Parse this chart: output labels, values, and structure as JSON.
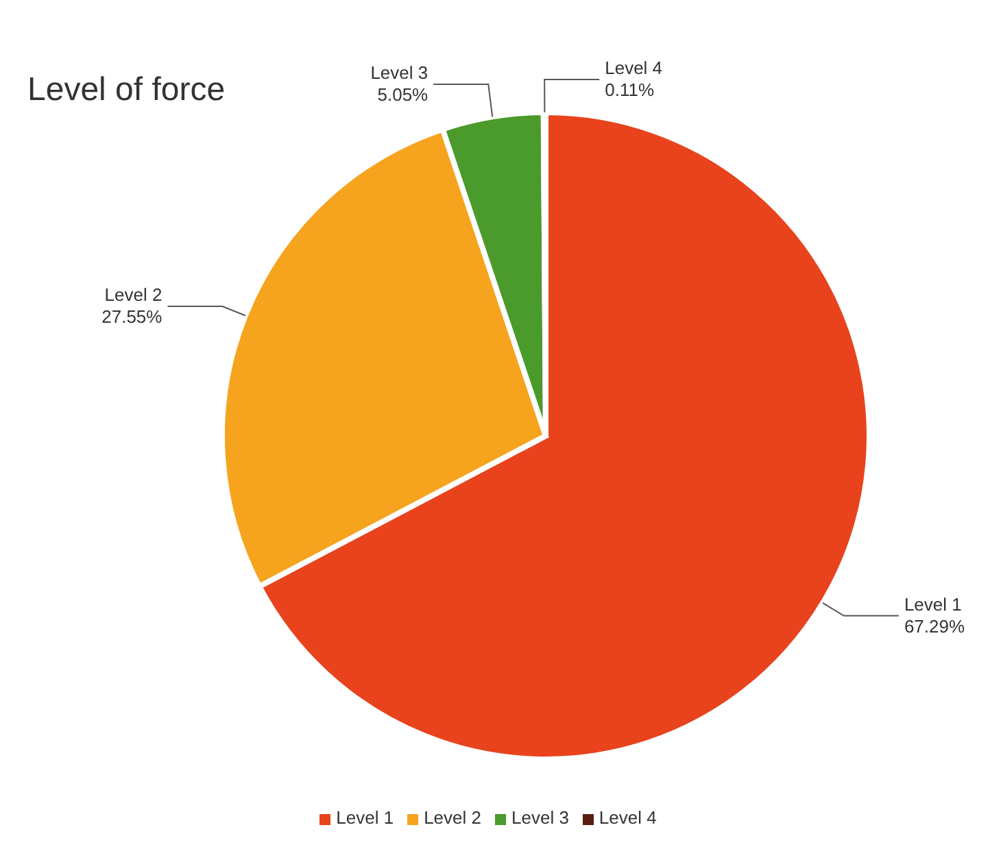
{
  "chart_data": {
    "type": "pie",
    "title": "Level of force",
    "categories": [
      "Level 1",
      "Level 2",
      "Level 3",
      "Level 4"
    ],
    "values": [
      67.29,
      27.55,
      5.05,
      0.11
    ],
    "value_labels": [
      "67.29%",
      "27.55%",
      "5.05%",
      "0.11%"
    ],
    "colors": [
      "#e8431c",
      "#f6a31e",
      "#4b9a2c",
      "#5a1d12"
    ],
    "legend": "bottom"
  }
}
